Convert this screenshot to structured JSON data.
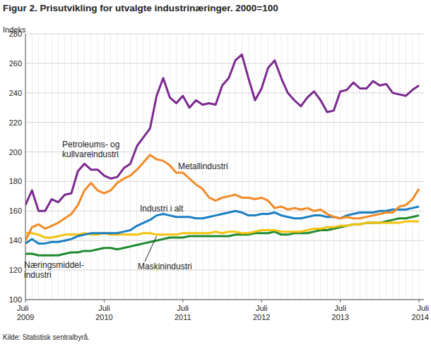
{
  "chart_data": {
    "type": "line",
    "title": "Figur 2. Prisutvikling for utvalgte industrinæringer. 2000=100",
    "y_label": "Indeks",
    "source": "Kilde: Statistisk sentralbyrå.",
    "categories": [
      "Juli 2009",
      null,
      null,
      null,
      null,
      null,
      null,
      null,
      null,
      null,
      null,
      null,
      "Juli 2010",
      null,
      null,
      null,
      null,
      null,
      null,
      null,
      null,
      null,
      null,
      null,
      "Juli 2011",
      null,
      null,
      null,
      null,
      null,
      null,
      null,
      null,
      null,
      null,
      null,
      "Juli 2012",
      null,
      null,
      null,
      null,
      null,
      null,
      null,
      null,
      null,
      null,
      null,
      "Juli 2013",
      null,
      null,
      null,
      null,
      null,
      null,
      null,
      null,
      null,
      null,
      null,
      "Juli 2014"
    ],
    "ylim": [
      100,
      280
    ],
    "yticks": [
      100,
      120,
      140,
      160,
      180,
      200,
      220,
      240,
      260,
      280
    ],
    "grid": true,
    "series": [
      {
        "name": "Petroleums- og\nkullvareindustri",
        "color": "#7b2a8f",
        "values": [
          164,
          174,
          160,
          160,
          168,
          166,
          171,
          172,
          187,
          192,
          188,
          188,
          184,
          182,
          183,
          189,
          192,
          204,
          210,
          216,
          238,
          250,
          237,
          233,
          238,
          230,
          235,
          232,
          233,
          232,
          245,
          250,
          262,
          266,
          250,
          235,
          243,
          257,
          262,
          250,
          240,
          235,
          231,
          237,
          241,
          235,
          227,
          228,
          241,
          242,
          247,
          243,
          243,
          248,
          245,
          246,
          240,
          239,
          238,
          242,
          245
        ]
      },
      {
        "name": "Metallindustri",
        "color": "#f28a26",
        "values": [
          140,
          149,
          151,
          148,
          150,
          152,
          155,
          158,
          164,
          174,
          179,
          174,
          172,
          174,
          179,
          182,
          184,
          188,
          193,
          198,
          195,
          194,
          191,
          186,
          186,
          182,
          178,
          175,
          169,
          167,
          169,
          170,
          171,
          169,
          169,
          168,
          169,
          167,
          162,
          163,
          161,
          162,
          161,
          162,
          160,
          161,
          158,
          156,
          155,
          156,
          155,
          155,
          156,
          157,
          158,
          159,
          159,
          163,
          164,
          168,
          175
        ]
      },
      {
        "name": "Industri i alt",
        "color": "#1a7fc3",
        "values": [
          138,
          141,
          138,
          138,
          139,
          139,
          140,
          141,
          143,
          144,
          145,
          145,
          145,
          145,
          145,
          146,
          147,
          150,
          152,
          154,
          157,
          158,
          157,
          156,
          156,
          156,
          155,
          155,
          156,
          157,
          158,
          159,
          160,
          159,
          157,
          157,
          158,
          158,
          159,
          157,
          156,
          155,
          155,
          156,
          157,
          157,
          156,
          156,
          155,
          157,
          158,
          159,
          159,
          159,
          160,
          160,
          161,
          161,
          161,
          162,
          163
        ]
      },
      {
        "name": "Maskinindustri",
        "color": "#f4c20d",
        "values": [
          145,
          145,
          144,
          142,
          142,
          143,
          144,
          144,
          144,
          145,
          144,
          144,
          145,
          144,
          144,
          144,
          144,
          144,
          145,
          145,
          144,
          144,
          144,
          144,
          145,
          145,
          145,
          145,
          145,
          146,
          145,
          146,
          146,
          145,
          145,
          146,
          147,
          147,
          147,
          146,
          146,
          146,
          146,
          147,
          148,
          148,
          149,
          149,
          150,
          150,
          151,
          151,
          152,
          152,
          152,
          152,
          152,
          152,
          153,
          153,
          153
        ]
      },
      {
        "name": "Næringsmiddel-\nindustri",
        "color": "#1e8a30",
        "values": [
          131,
          131,
          130,
          130,
          130,
          130,
          131,
          132,
          132,
          133,
          133,
          134,
          135,
          135,
          134,
          135,
          136,
          137,
          138,
          139,
          140,
          141,
          142,
          142,
          142,
          143,
          143,
          143,
          143,
          143,
          143,
          143,
          144,
          144,
          144,
          145,
          145,
          145,
          146,
          144,
          144,
          145,
          145,
          145,
          146,
          147,
          147,
          148,
          149,
          150,
          151,
          151,
          152,
          152,
          152,
          153,
          154,
          155,
          155,
          156,
          157
        ]
      }
    ]
  }
}
